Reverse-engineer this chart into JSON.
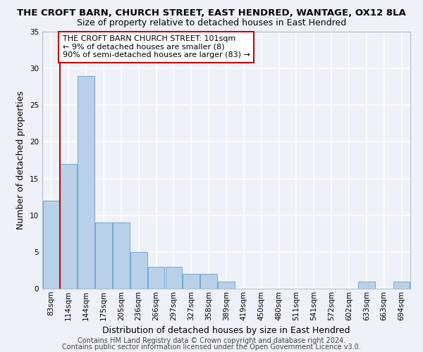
{
  "title_line1": "THE CROFT BARN, CHURCH STREET, EAST HENDRED, WANTAGE, OX12 8LA",
  "title_line2": "Size of property relative to detached houses in East Hendred",
  "xlabel": "Distribution of detached houses by size in East Hendred",
  "ylabel": "Number of detached properties",
  "categories": [
    "83sqm",
    "114sqm",
    "144sqm",
    "175sqm",
    "205sqm",
    "236sqm",
    "266sqm",
    "297sqm",
    "327sqm",
    "358sqm",
    "389sqm",
    "419sqm",
    "450sqm",
    "480sqm",
    "511sqm",
    "541sqm",
    "572sqm",
    "602sqm",
    "633sqm",
    "663sqm",
    "694sqm"
  ],
  "values": [
    12,
    17,
    29,
    9,
    9,
    5,
    3,
    3,
    2,
    2,
    1,
    0,
    0,
    0,
    0,
    0,
    0,
    0,
    1,
    0,
    1
  ],
  "bar_color": "#b8d0e8",
  "bar_edge_color": "#6fa8d0",
  "vline_color": "#cc0000",
  "vline_pos": 0.5,
  "annotation_text": "THE CROFT BARN CHURCH STREET: 101sqm\n← 9% of detached houses are smaller (8)\n90% of semi-detached houses are larger (83) →",
  "annotation_box_facecolor": "#ffffff",
  "annotation_box_edgecolor": "#cc0000",
  "ylim": [
    0,
    35
  ],
  "yticks": [
    0,
    5,
    10,
    15,
    20,
    25,
    30,
    35
  ],
  "footer_line1": "Contains HM Land Registry data © Crown copyright and database right 2024.",
  "footer_line2": "Contains public sector information licensed under the Open Government Licence v3.0.",
  "bg_color": "#eef2f8",
  "grid_color": "#ffffff",
  "title_fontsize": 9.5,
  "subtitle_fontsize": 9,
  "axis_label_fontsize": 9,
  "tick_fontsize": 7.5,
  "annotation_fontsize": 8,
  "footer_fontsize": 7
}
